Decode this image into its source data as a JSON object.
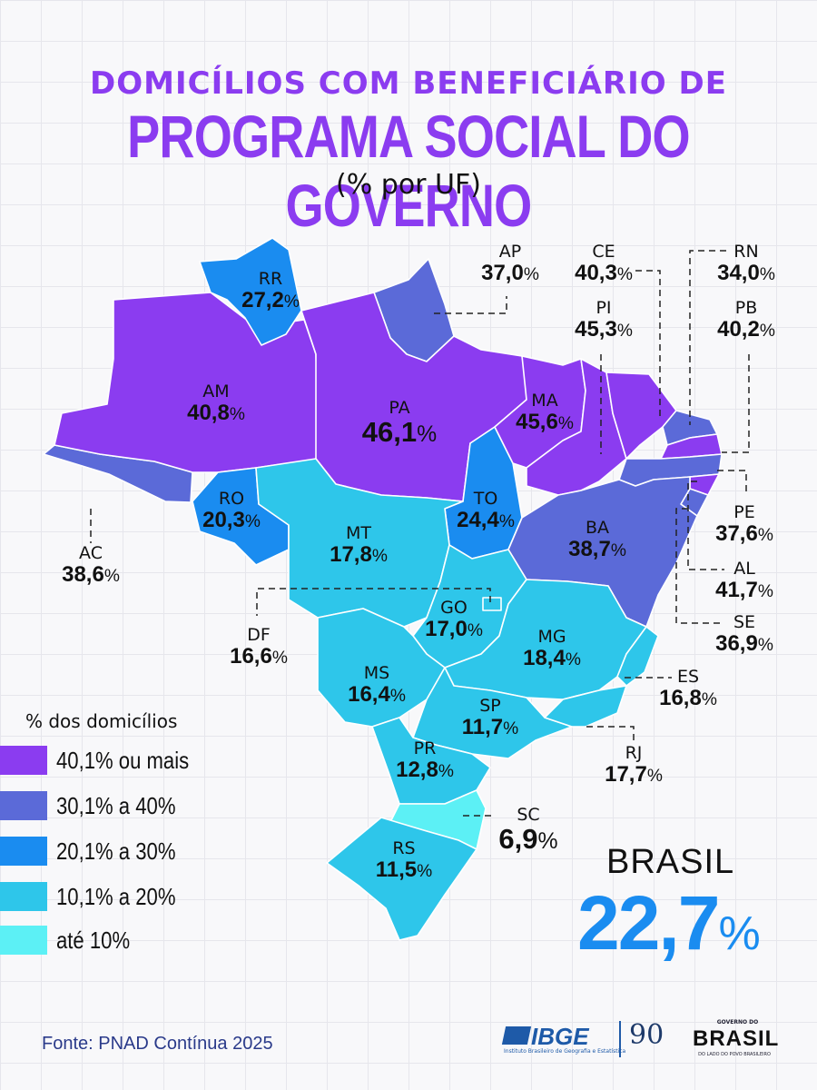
{
  "header": {
    "title_line1": "DOMICÍLIOS COM BENEFICIÁRIO DE",
    "title_line2": "PROGRAMA SOCIAL DO GOVERNO",
    "subtitle": "(% por UF)"
  },
  "colors": {
    "band_40_plus": "#8b3cf0",
    "band_30_40": "#5b6ad8",
    "band_20_30": "#1a8cf0",
    "band_10_20": "#2ec6ea",
    "band_up_10": "#5cf0f5",
    "accent_brasil": "#1a8cf0"
  },
  "legend": {
    "title": "% dos domicílios",
    "items": [
      {
        "label": "40,1% ou mais",
        "color": "#8b3cf0"
      },
      {
        "label": "30,1% a 40%",
        "color": "#5b6ad8"
      },
      {
        "label": "20,1% a 30%",
        "color": "#1a8cf0"
      },
      {
        "label": "10,1% a 20%",
        "color": "#2ec6ea"
      },
      {
        "label": "até 10%",
        "color": "#5cf0f5"
      }
    ]
  },
  "states": {
    "AC": {
      "uf": "AC",
      "value": "38,6",
      "pct": "%",
      "band": "30-40"
    },
    "AM": {
      "uf": "AM",
      "value": "40,8",
      "pct": "%",
      "band": "40+"
    },
    "RR": {
      "uf": "RR",
      "value": "27,2",
      "pct": "%",
      "band": "20-30"
    },
    "RO": {
      "uf": "RO",
      "value": "20,3",
      "pct": "%",
      "band": "20-30"
    },
    "PA": {
      "uf": "PA",
      "value": "46,1",
      "pct": "%",
      "band": "40+"
    },
    "AP": {
      "uf": "AP",
      "value": "37,0",
      "pct": "%",
      "band": "30-40"
    },
    "MT": {
      "uf": "MT",
      "value": "17,8",
      "pct": "%",
      "band": "10-20"
    },
    "TO": {
      "uf": "TO",
      "value": "24,4",
      "pct": "%",
      "band": "20-30"
    },
    "MA": {
      "uf": "MA",
      "value": "45,6",
      "pct": "%",
      "band": "40+"
    },
    "CE": {
      "uf": "CE",
      "value": "40,3",
      "pct": "%",
      "band": "40+"
    },
    "PI": {
      "uf": "PI",
      "value": "45,3",
      "pct": "%",
      "band": "40+"
    },
    "RN": {
      "uf": "RN",
      "value": "34,0",
      "pct": "%",
      "band": "30-40"
    },
    "PB": {
      "uf": "PB",
      "value": "40,2",
      "pct": "%",
      "band": "40+"
    },
    "PE": {
      "uf": "PE",
      "value": "37,6",
      "pct": "%",
      "band": "30-40"
    },
    "AL": {
      "uf": "AL",
      "value": "41,7",
      "pct": "%",
      "band": "40+"
    },
    "SE": {
      "uf": "SE",
      "value": "36,9",
      "pct": "%",
      "band": "30-40"
    },
    "BA": {
      "uf": "BA",
      "value": "38,7",
      "pct": "%",
      "band": "30-40"
    },
    "GO": {
      "uf": "GO",
      "value": "17,0",
      "pct": "%",
      "band": "10-20"
    },
    "DF": {
      "uf": "DF",
      "value": "16,6",
      "pct": "%",
      "band": "10-20"
    },
    "MG": {
      "uf": "MG",
      "value": "18,4",
      "pct": "%",
      "band": "10-20"
    },
    "ES": {
      "uf": "ES",
      "value": "16,8",
      "pct": "%",
      "band": "10-20"
    },
    "MS": {
      "uf": "MS",
      "value": "16,4",
      "pct": "%",
      "band": "10-20"
    },
    "SP": {
      "uf": "SP",
      "value": "11,7",
      "pct": "%",
      "band": "10-20"
    },
    "RJ": {
      "uf": "RJ",
      "value": "17,7",
      "pct": "%",
      "band": "10-20"
    },
    "PR": {
      "uf": "PR",
      "value": "12,8",
      "pct": "%",
      "band": "10-20"
    },
    "SC": {
      "uf": "SC",
      "value": "6,9",
      "pct": "%",
      "band": "0-10"
    },
    "RS": {
      "uf": "RS",
      "value": "11,5",
      "pct": "%",
      "band": "10-20"
    }
  },
  "brasil": {
    "label": "BRASIL",
    "value": "22,7",
    "pct": "%"
  },
  "source": "Fonte: PNAD Contínua 2025",
  "logos": {
    "ibge": "IBGE",
    "ibge_sub": "Instituto Brasileiro de Geografia e Estatística",
    "anniversary": "90",
    "gov_top": "GOVERNO DO",
    "gov_name": "BRASIL",
    "gov_slogan": "DO LADO DO POVO BRASILEIRO"
  }
}
